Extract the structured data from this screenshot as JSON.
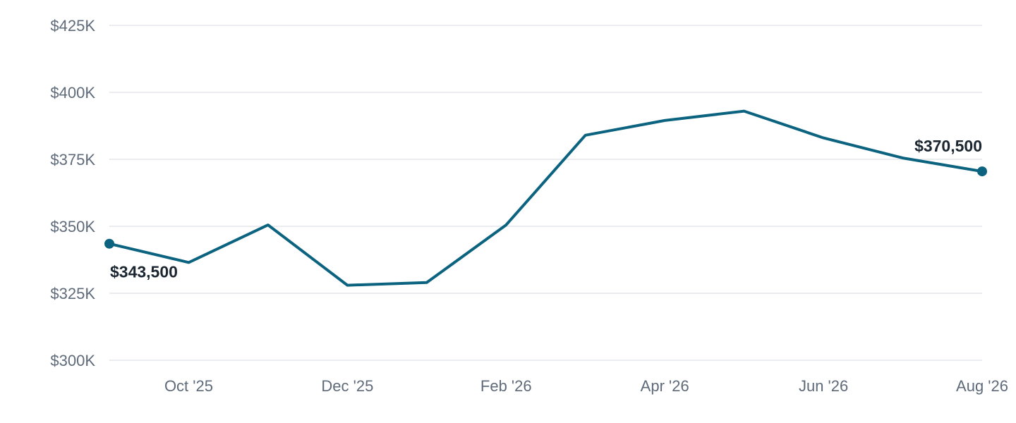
{
  "chart_data": {
    "type": "line",
    "title": "",
    "xlabel": "",
    "ylabel": "",
    "x": [
      "Sep '25",
      "Oct '25",
      "Nov '25",
      "Dec '25",
      "Jan '26",
      "Feb '26",
      "Mar '26",
      "Apr '26",
      "May '26",
      "Jun '26",
      "Jul '26",
      "Aug '26"
    ],
    "series": [
      {
        "values": [
          343500,
          336500,
          350500,
          328000,
          329000,
          350500,
          384000,
          389500,
          393000,
          383000,
          375500,
          370500
        ]
      }
    ],
    "ylim": [
      300000,
      425000
    ],
    "yticks": [
      300000,
      325000,
      350000,
      375000,
      400000,
      425000
    ],
    "ytick_labels": [
      "$300K",
      "$325K",
      "$350K",
      "$375K",
      "$400K",
      "$425K"
    ],
    "xtick_labels": [
      {
        "x": "Oct '25",
        "label": "Oct '25"
      },
      {
        "x": "Dec '25",
        "label": "Dec '25"
      },
      {
        "x": "Feb '26",
        "label": "Feb '26"
      },
      {
        "x": "Apr '26",
        "label": "Apr '26"
      },
      {
        "x": "Jun '26",
        "label": "Jun '26"
      },
      {
        "x": "Aug '26",
        "label": "Aug '26"
      }
    ],
    "annotations": [
      {
        "x": "Sep '25",
        "value": 343500,
        "text": "$343,500"
      },
      {
        "x": "Aug '26",
        "value": 370500,
        "text": "$370,500"
      }
    ],
    "grid": true,
    "legend": "none",
    "line_color": "#0b6380"
  }
}
